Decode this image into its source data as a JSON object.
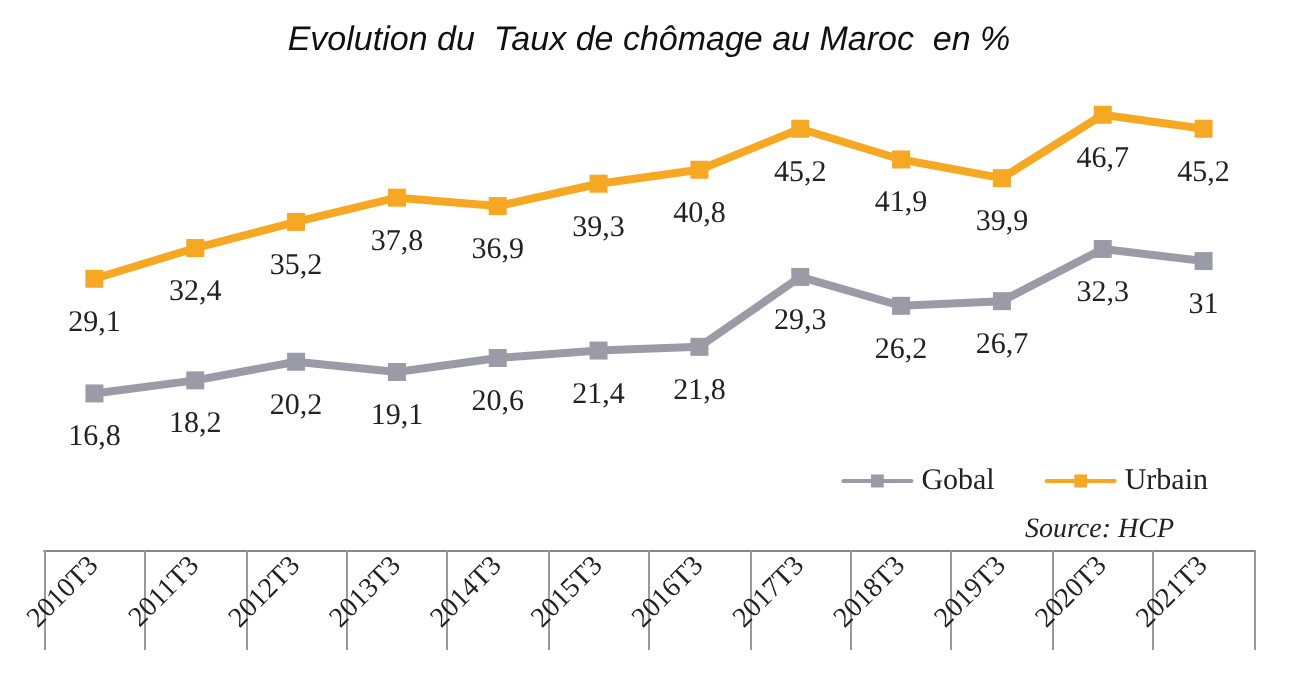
{
  "chart_data": {
    "type": "line",
    "title": "Evolution du  Taux de chômage au Maroc  en %",
    "categories": [
      "2010T3",
      "2011T3",
      "2012T3",
      "2013T3",
      "2014T3",
      "2015T3",
      "2016T3",
      "2017T3",
      "2018T3",
      "2019T3",
      "2020T3",
      "2021T3"
    ],
    "series": [
      {
        "name": "Gobal",
        "color": "#9b9ba8",
        "values": [
          16.8,
          18.2,
          20.2,
          19.1,
          20.6,
          21.4,
          21.8,
          29.3,
          26.2,
          26.7,
          32.3,
          31
        ],
        "value_labels": [
          "16,8",
          "18,2",
          "20,2",
          "19,1",
          "20,6",
          "21,4",
          "21,8",
          "29,3",
          "26,2",
          "26,7",
          "32,3",
          "31"
        ]
      },
      {
        "name": "Urbain",
        "color": "#f7a823",
        "values": [
          29.1,
          32.4,
          35.2,
          37.8,
          36.9,
          39.3,
          40.8,
          45.2,
          41.9,
          39.9,
          46.7,
          45.2
        ],
        "value_labels": [
          "29,1",
          "32,4",
          "35,2",
          "37,8",
          "36,9",
          "39,3",
          "40,8",
          "45,2",
          "41,9",
          "39,9",
          "46,7",
          "45,2"
        ]
      }
    ],
    "annotations": [
      "Source: HCP"
    ],
    "marker": "square",
    "legend": "bottom right",
    "grid": false
  }
}
